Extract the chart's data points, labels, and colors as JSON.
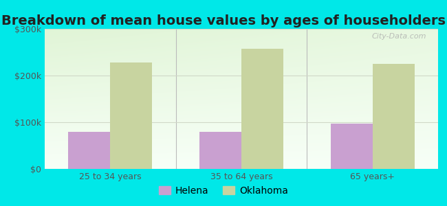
{
  "title": "Breakdown of mean house values by ages of householders",
  "categories": [
    "25 to 34 years",
    "35 to 64 years",
    "65 years+"
  ],
  "helena_values": [
    80000,
    80000,
    97000
  ],
  "oklahoma_values": [
    228000,
    258000,
    225000
  ],
  "helena_color": "#c9a0d0",
  "oklahoma_color": "#c8d4a0",
  "ylim": [
    0,
    300000
  ],
  "yticks": [
    0,
    100000,
    200000,
    300000
  ],
  "ytick_labels": [
    "$0",
    "$100k",
    "$200k",
    "$300k"
  ],
  "background_outer": "#00e8e8",
  "bar_width": 0.32,
  "legend_helena": "Helena",
  "legend_oklahoma": "Oklahoma",
  "title_fontsize": 14,
  "tick_fontsize": 9,
  "legend_fontsize": 10,
  "grid_color": "#e0e8e0",
  "tick_color": "#555555"
}
